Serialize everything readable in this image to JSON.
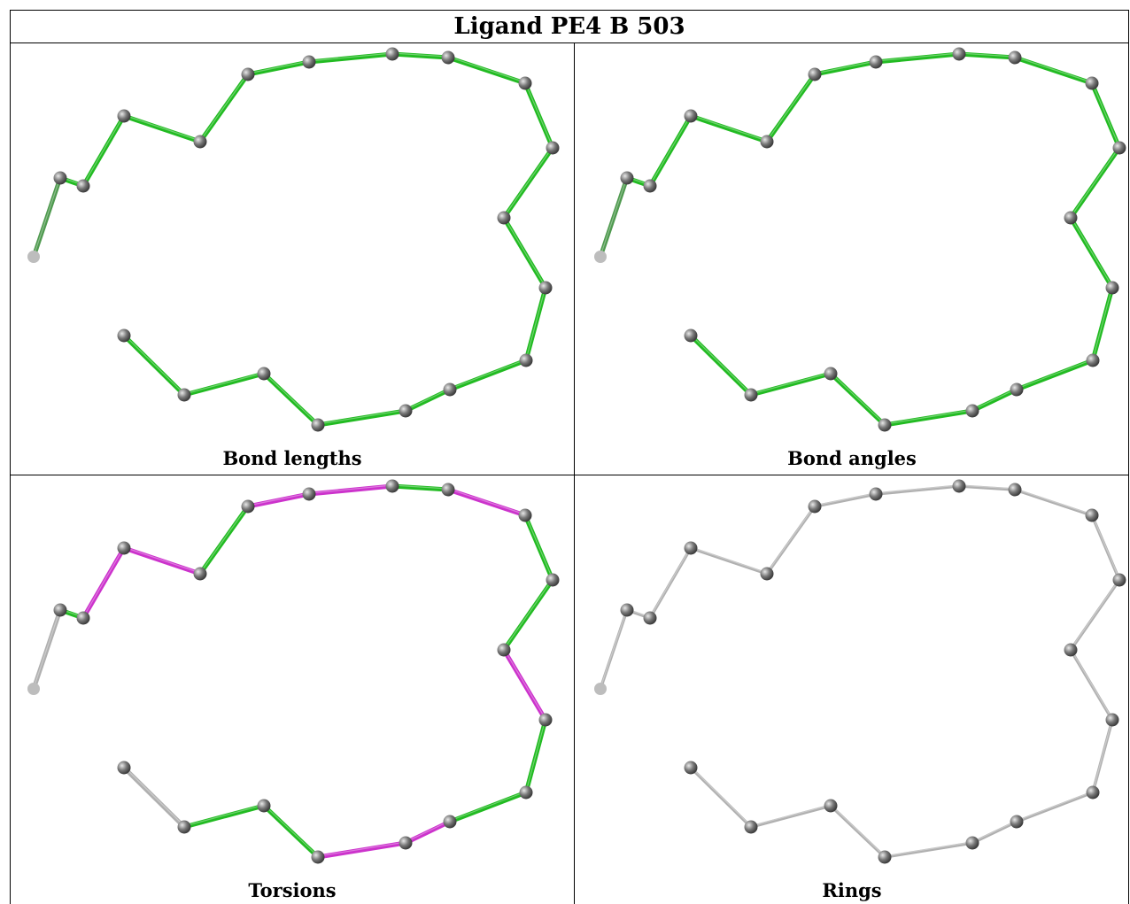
{
  "title": "Ligand PE4 B 503",
  "panels": [
    {
      "caption": "Bond lengths",
      "scheme": "lengths"
    },
    {
      "caption": "Bond angles",
      "scheme": "angles"
    },
    {
      "caption": "Torsions",
      "scheme": "torsions"
    },
    {
      "caption": "Rings",
      "scheme": "rings"
    }
  ],
  "colors": {
    "ok_bond": "#22bb22",
    "outlier_bond": "#cc33cc",
    "neutral_bond": "#b0b0b0",
    "atom": "#777777"
  }
}
